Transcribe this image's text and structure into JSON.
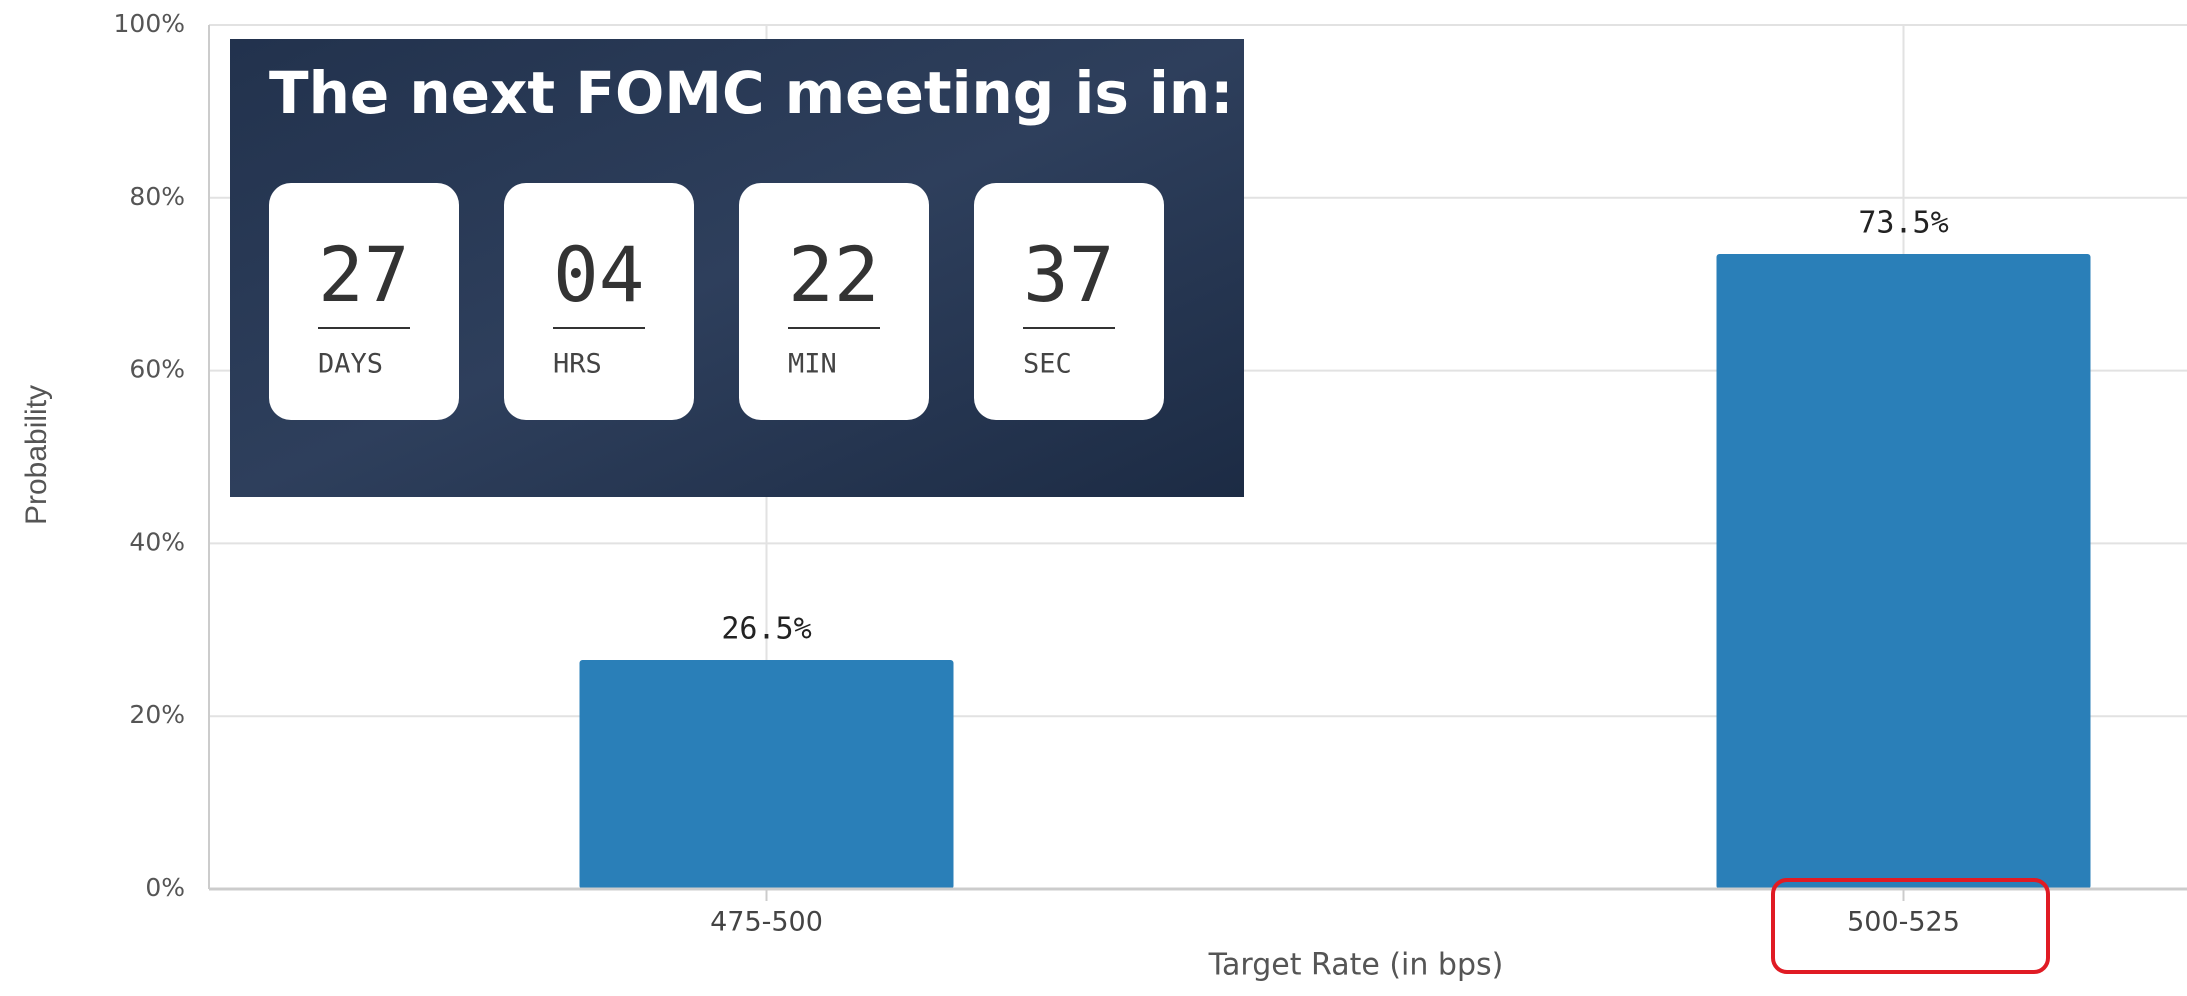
{
  "chart_data": {
    "type": "bar",
    "x_label": "Target Rate (in bps)",
    "y_label": "Probability",
    "categories": [
      "475-500",
      "500-525"
    ],
    "values": [
      26.5,
      73.5
    ],
    "value_labels": [
      "26.5%",
      "73.5%"
    ],
    "color": "#2a7fb8",
    "ylim": [
      0,
      100
    ],
    "yticks": [
      {
        "value": 0,
        "label": "0%"
      },
      {
        "value": 20,
        "label": "20%"
      },
      {
        "value": 40,
        "label": "40%"
      },
      {
        "value": 60,
        "label": "60%"
      },
      {
        "value": 80,
        "label": "80%"
      },
      {
        "value": 100,
        "label": "100%"
      }
    ],
    "grid": true
  },
  "countdown": {
    "title": "The next FOMC meeting is in:",
    "units": [
      {
        "value": "27",
        "label": "DAYS"
      },
      {
        "value": "04",
        "label": "HRS"
      },
      {
        "value": "22",
        "label": "MIN"
      },
      {
        "value": "37",
        "label": "SEC"
      }
    ]
  }
}
